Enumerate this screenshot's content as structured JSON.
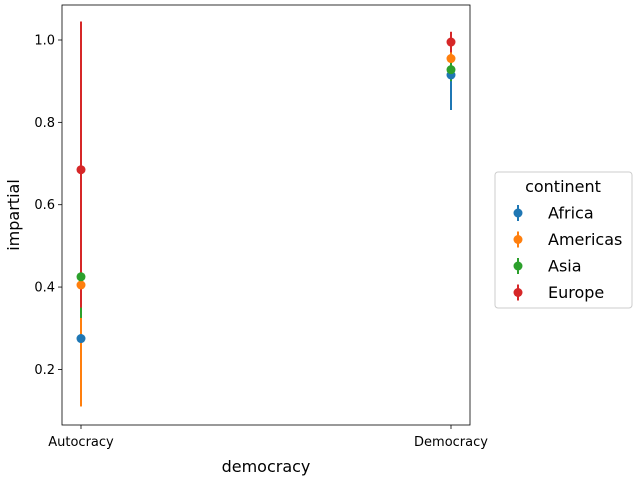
{
  "chart_data": {
    "type": "scatter",
    "title": "",
    "xlabel": "democracy",
    "ylabel": "impartial",
    "categories": [
      "Autocracy",
      "Democracy"
    ],
    "ylim": [
      0.065,
      1.085
    ],
    "yticks": [
      0.2,
      0.4,
      0.6,
      0.8,
      1.0
    ],
    "ytick_labels": [
      "0.2",
      "0.4",
      "0.6",
      "0.8",
      "1.0"
    ],
    "grid": false,
    "legend": {
      "title": "continent",
      "placement": "outside-right"
    },
    "series": [
      {
        "name": "Africa",
        "color": "#1f77b4",
        "values": [
          0.275,
          0.915
        ],
        "err_low": [
          0.275,
          0.83
        ],
        "err_high": [
          0.275,
          0.935
        ]
      },
      {
        "name": "Americas",
        "color": "#ff7f0e",
        "values": [
          0.405,
          0.955
        ],
        "err_low": [
          0.11,
          0.925
        ],
        "err_high": [
          0.4,
          1.01
        ]
      },
      {
        "name": "Asia",
        "color": "#2ca02c",
        "values": [
          0.425,
          0.928
        ],
        "err_low": [
          0.325,
          0.9
        ],
        "err_high": [
          0.425,
          0.96
        ]
      },
      {
        "name": "Europe",
        "color": "#d62728",
        "values": [
          0.685,
          0.995
        ],
        "err_low": [
          0.35,
          0.97
        ],
        "err_high": [
          1.045,
          1.02
        ]
      }
    ]
  }
}
